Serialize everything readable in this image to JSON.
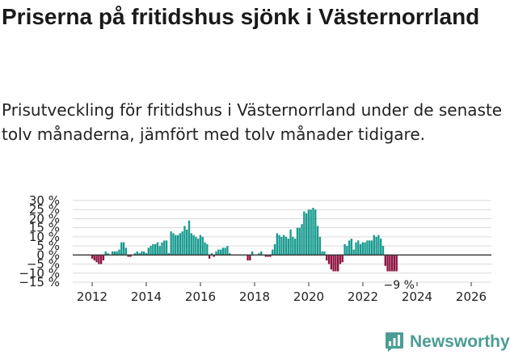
{
  "chart_data": {
    "type": "bar",
    "title": "Priserna på fritidshus sjönk i Västernorrland",
    "subtitle": "Prisutveckling för fritidshus i Västernorrland under de senaste tolv månaderna, jämfört med tolv månader tidigare.",
    "xlabel": "",
    "ylabel": "",
    "ylim": [
      -15,
      30
    ],
    "yticks": [
      -15,
      -10,
      -5,
      0,
      5,
      10,
      15,
      20,
      25,
      30
    ],
    "ytick_labels": [
      "−15 %",
      "−10 %",
      "−5 %",
      "0 %",
      "5 %",
      "10 %",
      "15 %",
      "20 %",
      "25 %",
      "30 %"
    ],
    "xticks": [
      2012,
      2014,
      2016,
      2018,
      2020,
      2022,
      2024,
      2026
    ],
    "x_start": 2012,
    "x_step": 0.0833,
    "positive_color": "#1a9b8f",
    "negative_color": "#8c1240",
    "grid": true,
    "last_value_label": "−9 %",
    "values": [
      -2,
      -3,
      -4,
      -5,
      -5,
      -3,
      2,
      1,
      0,
      2,
      2,
      2,
      3,
      7,
      7,
      4,
      -1,
      -1,
      0,
      1,
      2,
      1,
      2,
      2,
      1,
      4,
      5,
      6,
      6,
      7,
      5,
      7,
      8,
      8,
      1,
      13,
      12,
      11,
      11,
      12,
      13,
      16,
      14,
      19,
      12,
      11,
      10,
      9,
      11,
      10,
      7,
      6,
      -2,
      1,
      -1,
      2,
      3,
      3,
      4,
      4,
      5,
      1,
      0,
      0,
      0,
      0,
      0,
      0,
      0,
      -3,
      -3,
      2,
      0,
      0,
      1,
      2,
      0,
      -1,
      -1,
      -1,
      3,
      6,
      12,
      11,
      10,
      11,
      10,
      9,
      14,
      10,
      9,
      15,
      15,
      17,
      24,
      23,
      25,
      25,
      26,
      25,
      16,
      10,
      2,
      2,
      -3,
      -5,
      -8,
      -9,
      -9,
      -9,
      -5,
      -4,
      6,
      5,
      8,
      9,
      3,
      7,
      8,
      6,
      7,
      7,
      8,
      8,
      8,
      11,
      10,
      11,
      9,
      5,
      -6,
      -9,
      -9,
      -9,
      -9,
      -9
    ]
  },
  "brand": {
    "name": "Newsworthy",
    "icon": "bar-chart-icon"
  }
}
